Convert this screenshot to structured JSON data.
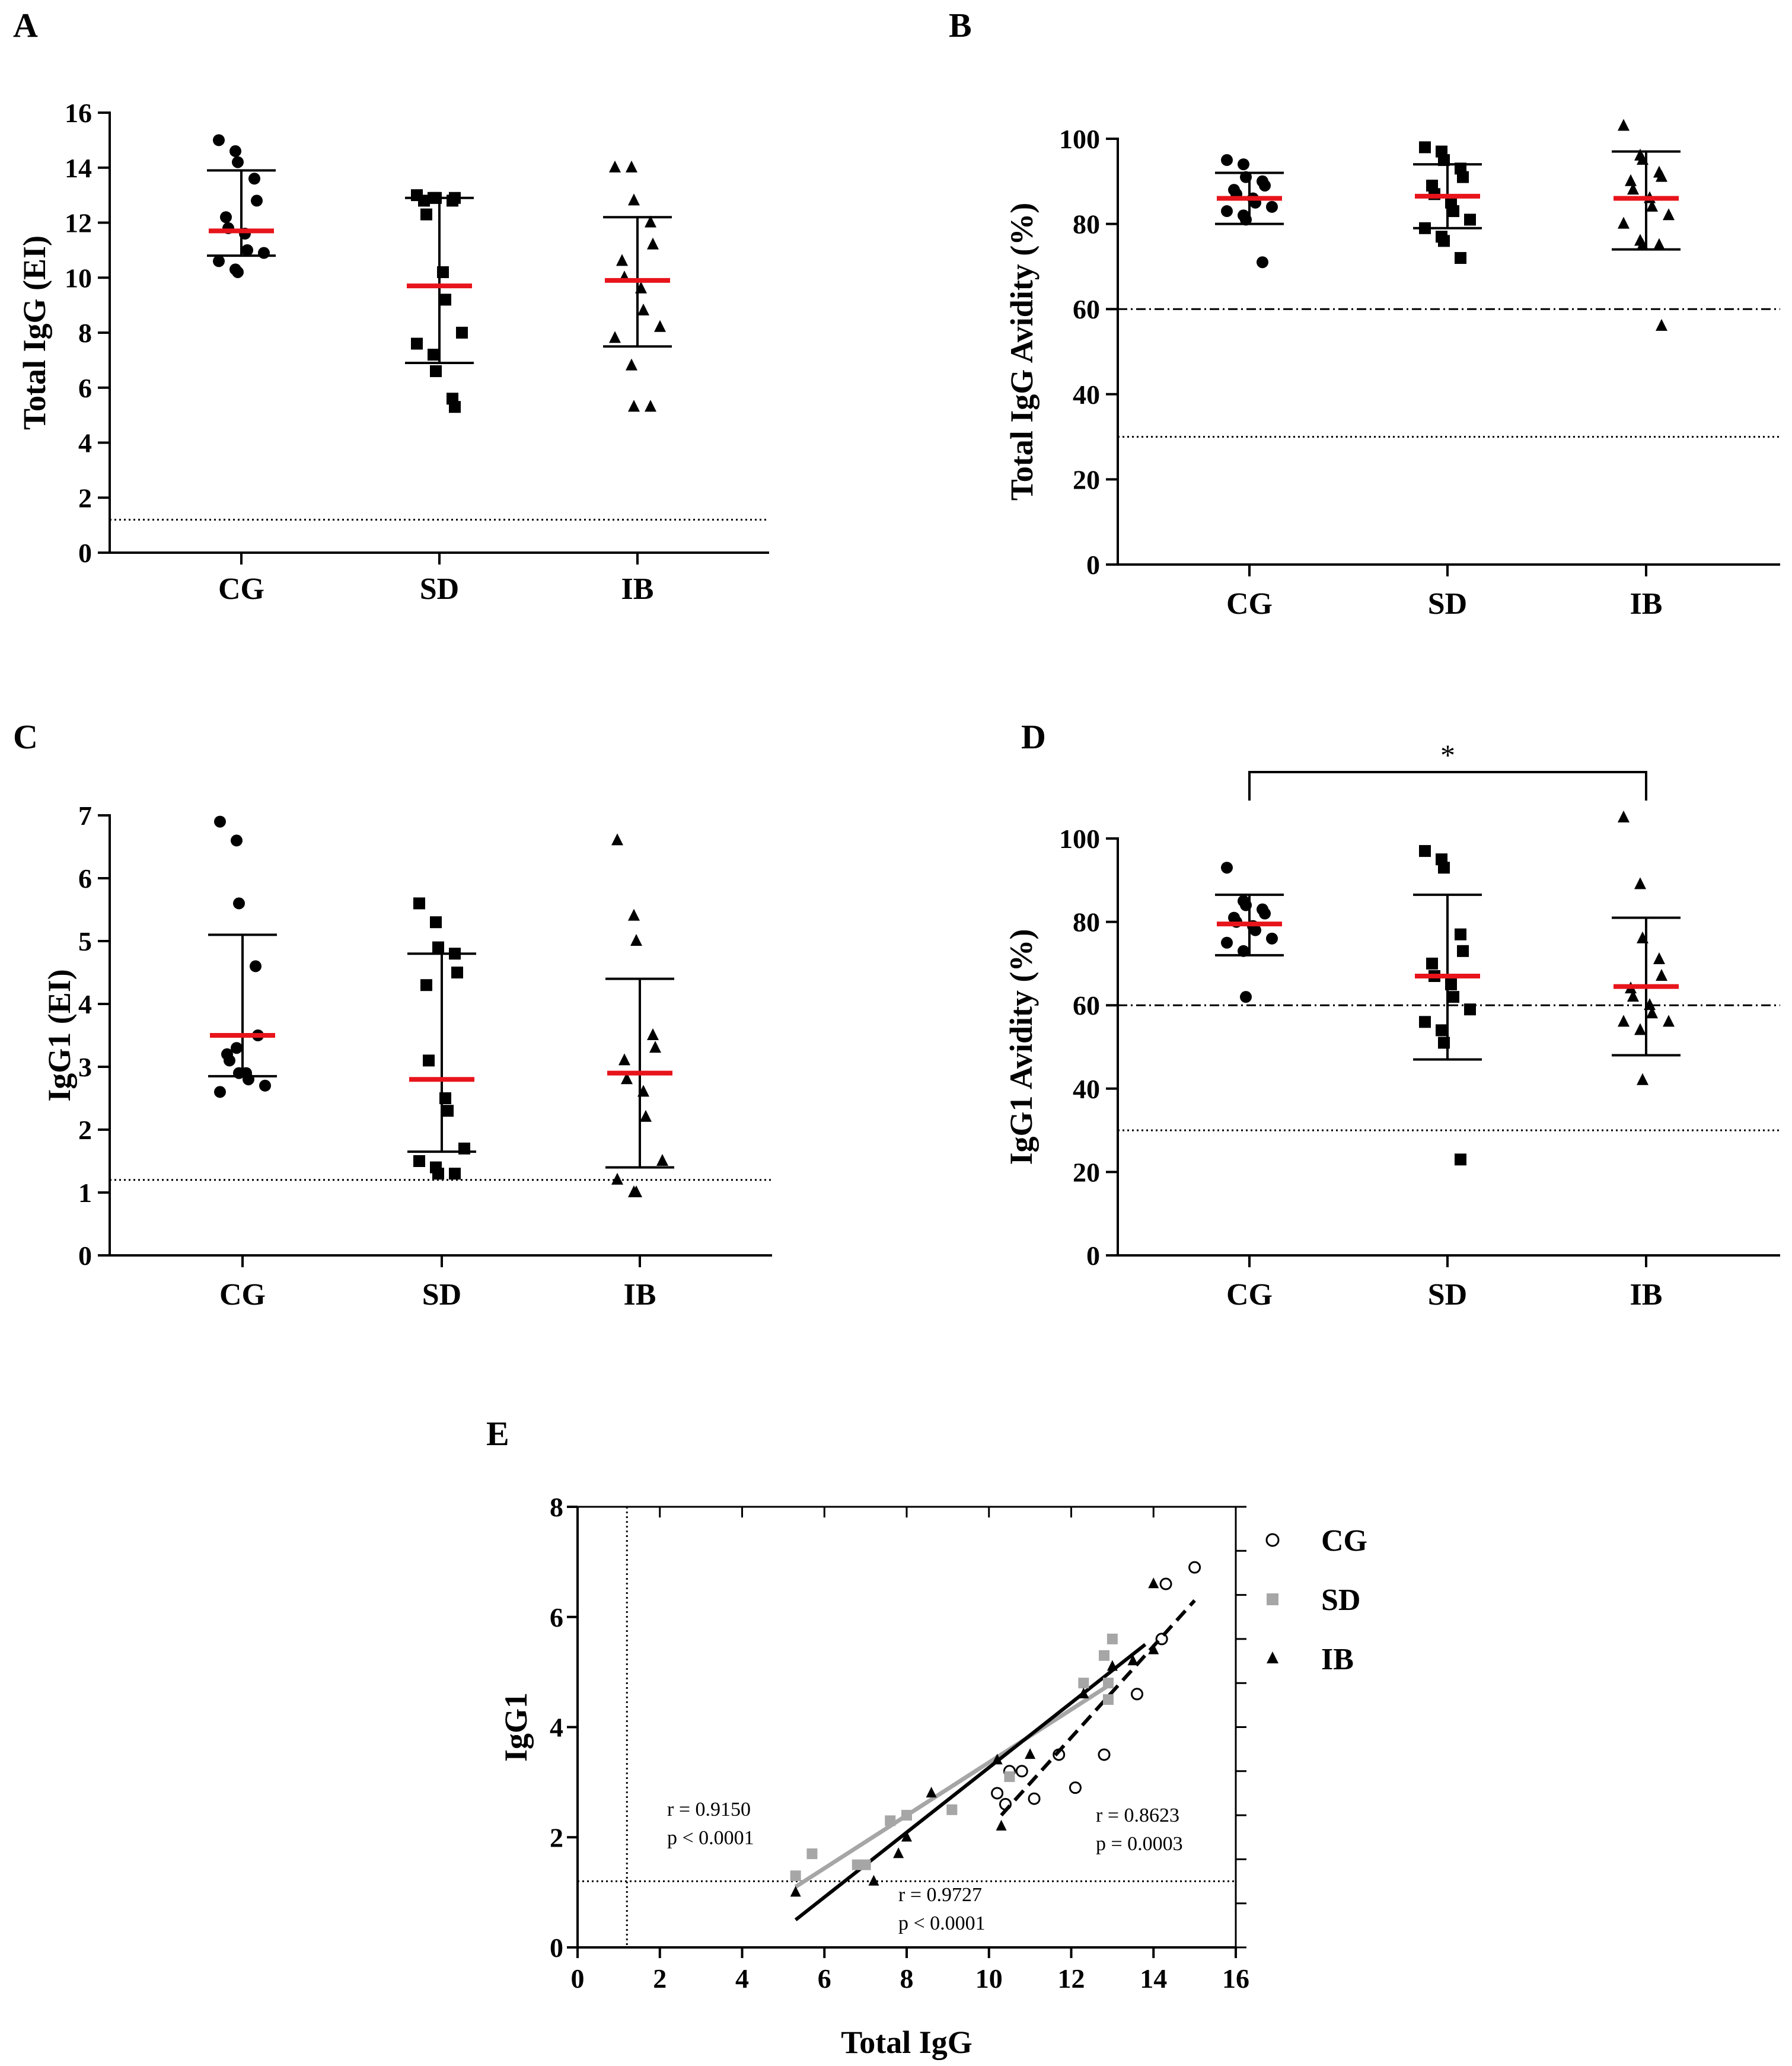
{
  "colors": {
    "mean": "#e8141b",
    "points": "#000000",
    "sd_gray": "#a6a6a6",
    "axis": "#000000"
  },
  "chart_data": [
    {
      "panel": "A",
      "type": "scatter",
      "ylabel": "Total IgG (EI)",
      "categories": [
        "CG",
        "SD",
        "IB"
      ],
      "ylim": [
        0,
        16
      ],
      "yticks": [
        0,
        2,
        4,
        6,
        8,
        10,
        12,
        14,
        16
      ],
      "cutoff_dotted": 1.2,
      "groups": [
        {
          "name": "CG",
          "marker": "circle",
          "mean": 11.7,
          "sd_upper": 13.9,
          "sd_lower": 10.8,
          "values": [
            15.0,
            14.6,
            14.2,
            13.6,
            12.8,
            12.2,
            11.8,
            11.6,
            11.0,
            10.9,
            10.6,
            10.3,
            10.2
          ]
        },
        {
          "name": "SD",
          "marker": "square",
          "mean": 9.7,
          "sd_upper": 12.9,
          "sd_lower": 6.9,
          "values": [
            13.0,
            12.9,
            12.9,
            12.8,
            12.9,
            12.8,
            12.3,
            10.2,
            9.2,
            8.0,
            7.6,
            7.2,
            6.6,
            5.6,
            5.3
          ]
        },
        {
          "name": "IB",
          "marker": "triangle",
          "mean": 9.9,
          "sd_upper": 12.2,
          "sd_lower": 7.5,
          "values": [
            14.0,
            14.0,
            12.8,
            12.0,
            11.2,
            10.6,
            10.0,
            9.6,
            8.8,
            8.2,
            7.8,
            6.8,
            5.3,
            5.3
          ]
        }
      ]
    },
    {
      "panel": "B",
      "type": "scatter",
      "ylabel": "Total IgG Avidity (%)",
      "categories": [
        "CG",
        "SD",
        "IB"
      ],
      "ylim": [
        0,
        100
      ],
      "yticks": [
        0,
        20,
        40,
        60,
        80,
        100
      ],
      "cutoff_dashdot": 60,
      "cutoff_dotted": 30,
      "groups": [
        {
          "name": "CG",
          "marker": "circle",
          "mean": 86,
          "sd_upper": 92,
          "sd_lower": 80,
          "values": [
            95,
            94,
            91,
            90,
            89,
            88,
            87,
            86,
            85,
            84,
            83,
            82,
            81,
            71
          ]
        },
        {
          "name": "SD",
          "marker": "square",
          "mean": 86.5,
          "sd_upper": 94,
          "sd_lower": 79,
          "values": [
            98,
            97,
            95,
            93,
            91,
            89,
            87,
            85,
            83,
            81,
            79,
            77,
            76,
            72
          ]
        },
        {
          "name": "IB",
          "marker": "triangle",
          "mean": 86,
          "sd_upper": 97,
          "sd_lower": 74,
          "values": [
            103,
            96,
            95,
            92,
            91,
            90,
            88,
            86,
            84,
            82,
            80,
            76,
            75,
            75,
            56
          ]
        }
      ]
    },
    {
      "panel": "C",
      "type": "scatter",
      "ylabel": "IgG1 (EI)",
      "categories": [
        "CG",
        "SD",
        "IB"
      ],
      "ylim": [
        0,
        7
      ],
      "yticks": [
        0,
        1,
        2,
        3,
        4,
        5,
        6,
        7
      ],
      "cutoff_dotted": 1.2,
      "groups": [
        {
          "name": "CG",
          "marker": "circle",
          "mean": 3.5,
          "sd_upper": 5.1,
          "sd_lower": 2.85,
          "values": [
            6.9,
            6.6,
            5.6,
            4.6,
            3.5,
            3.2,
            3.1,
            2.9,
            2.8,
            2.7,
            2.6,
            3.3,
            2.9
          ]
        },
        {
          "name": "SD",
          "marker": "square",
          "mean": 2.8,
          "sd_upper": 4.8,
          "sd_lower": 1.65,
          "values": [
            5.6,
            5.3,
            4.9,
            4.8,
            4.5,
            4.3,
            3.1,
            2.5,
            2.3,
            1.7,
            1.5,
            1.4,
            1.3,
            1.3
          ]
        },
        {
          "name": "IB",
          "marker": "triangle",
          "mean": 2.9,
          "sd_upper": 4.4,
          "sd_lower": 1.4,
          "values": [
            6.6,
            5.4,
            5.0,
            3.5,
            3.3,
            3.1,
            2.8,
            2.6,
            2.2,
            1.5,
            1.2,
            1.0,
            1.0
          ]
        }
      ]
    },
    {
      "panel": "D",
      "type": "scatter",
      "ylabel": "IgG1 Avidity (%)",
      "categories": [
        "CG",
        "SD",
        "IB"
      ],
      "ylim": [
        0,
        100
      ],
      "yticks": [
        0,
        20,
        40,
        60,
        80,
        100
      ],
      "cutoff_dashdot": 60,
      "cutoff_dotted": 30,
      "significance": {
        "from": "CG",
        "to": "IB",
        "label": "*"
      },
      "groups": [
        {
          "name": "CG",
          "marker": "circle",
          "mean": 79.5,
          "sd_upper": 86.5,
          "sd_lower": 72,
          "values": [
            93,
            85,
            84,
            83,
            82,
            81,
            80,
            79,
            78,
            76,
            75,
            73,
            62
          ]
        },
        {
          "name": "SD",
          "marker": "square",
          "mean": 67,
          "sd_upper": 86.5,
          "sd_lower": 47,
          "values": [
            97,
            95,
            93,
            77,
            73,
            70,
            67,
            65,
            62,
            59,
            56,
            54,
            51,
            23
          ]
        },
        {
          "name": "IB",
          "marker": "triangle",
          "mean": 64.5,
          "sd_upper": 81,
          "sd_lower": 48,
          "values": [
            105,
            89,
            76,
            71,
            67,
            64,
            62,
            60,
            58,
            56,
            56,
            54,
            42
          ]
        }
      ]
    },
    {
      "panel": "E",
      "type": "scatter",
      "xlabel": "Total IgG",
      "ylabel": "IgG1",
      "xlim": [
        0,
        16
      ],
      "ylim": [
        0,
        8
      ],
      "xticks": [
        0,
        2,
        4,
        6,
        8,
        10,
        12,
        14,
        16
      ],
      "yticks": [
        0,
        2,
        4,
        6,
        8
      ],
      "cutoff_x": 1.2,
      "cutoff_y": 1.2,
      "legend": [
        {
          "name": "CG",
          "marker": "circle-open"
        },
        {
          "name": "SD",
          "marker": "square-gray"
        },
        {
          "name": "IB",
          "marker": "triangle"
        }
      ],
      "series": [
        {
          "name": "CG",
          "marker": "circle-open",
          "points": [
            [
              15.0,
              6.9
            ],
            [
              14.3,
              6.6
            ],
            [
              14.2,
              5.6
            ],
            [
              13.6,
              4.6
            ],
            [
              12.8,
              3.5
            ],
            [
              12.1,
              2.9
            ],
            [
              11.7,
              3.5
            ],
            [
              11.1,
              2.7
            ],
            [
              10.8,
              3.2
            ],
            [
              10.5,
              3.2
            ],
            [
              10.4,
              2.6
            ],
            [
              10.2,
              2.8
            ]
          ]
        },
        {
          "name": "SD",
          "marker": "square-gray",
          "points": [
            [
              13.0,
              5.6
            ],
            [
              12.8,
              5.3
            ],
            [
              12.9,
              4.8
            ],
            [
              12.3,
              4.8
            ],
            [
              12.9,
              4.5
            ],
            [
              10.5,
              3.1
            ],
            [
              9.1,
              2.5
            ],
            [
              8.0,
              2.4
            ],
            [
              7.6,
              2.3
            ],
            [
              7.0,
              1.5
            ],
            [
              6.8,
              1.5
            ],
            [
              5.7,
              1.7
            ],
            [
              5.3,
              1.3
            ]
          ]
        },
        {
          "name": "IB",
          "marker": "triangle",
          "points": [
            [
              14.0,
              6.6
            ],
            [
              14.0,
              5.4
            ],
            [
              13.5,
              5.2
            ],
            [
              13.0,
              5.1
            ],
            [
              12.3,
              4.6
            ],
            [
              11.0,
              3.5
            ],
            [
              10.2,
              3.4
            ],
            [
              8.6,
              2.8
            ],
            [
              8.0,
              2.0
            ],
            [
              7.8,
              1.7
            ],
            [
              7.2,
              1.2
            ],
            [
              10.3,
              2.2
            ],
            [
              5.3,
              1.0
            ]
          ]
        }
      ],
      "fits": [
        {
          "name": "CG",
          "style": "dashed",
          "from": [
            10.3,
            2.4
          ],
          "to": [
            15.0,
            6.3
          ],
          "r": "r = 0.8623",
          "p": "p = 0.0003"
        },
        {
          "name": "SD",
          "style": "gray",
          "from": [
            5.3,
            1.1
          ],
          "to": [
            13.0,
            4.8
          ],
          "r": "r = 0.9150",
          "p": "p < 0.0001"
        },
        {
          "name": "IB",
          "style": "solid",
          "from": [
            5.3,
            0.5
          ],
          "to": [
            13.8,
            5.5
          ],
          "r": "r = 0.9727",
          "p": "p < 0.0001"
        }
      ]
    }
  ]
}
